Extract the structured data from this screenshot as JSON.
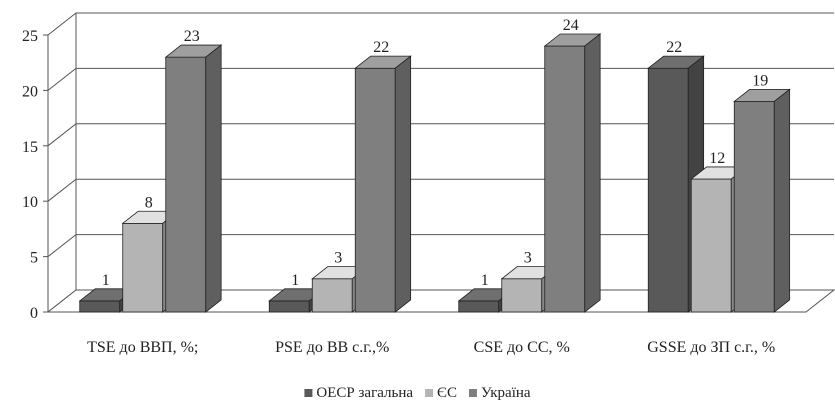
{
  "chart_data": {
    "type": "bar",
    "style": "3d-clustered-column",
    "categories": [
      "TSE до ВВП, %;",
      "PSE до ВВ с.г.,%",
      "CSE до СС, %",
      "GSSE до ЗП с.г., %"
    ],
    "series": [
      {
        "name": "ОЕСР загальна",
        "color": "#595959",
        "values": [
          1,
          1,
          1,
          22
        ]
      },
      {
        "name": "ЄС",
        "color": "#b4b4b4",
        "values": [
          8,
          3,
          3,
          12
        ]
      },
      {
        "name": "Україна",
        "color": "#7f7f7f",
        "values": [
          23,
          22,
          24,
          19
        ]
      }
    ],
    "y_ticks": [
      "0",
      "5",
      "10",
      "15",
      "20",
      "25"
    ],
    "ylim": [
      0,
      25
    ],
    "grid": true,
    "legend_position": "bottom",
    "data_labels": true
  }
}
